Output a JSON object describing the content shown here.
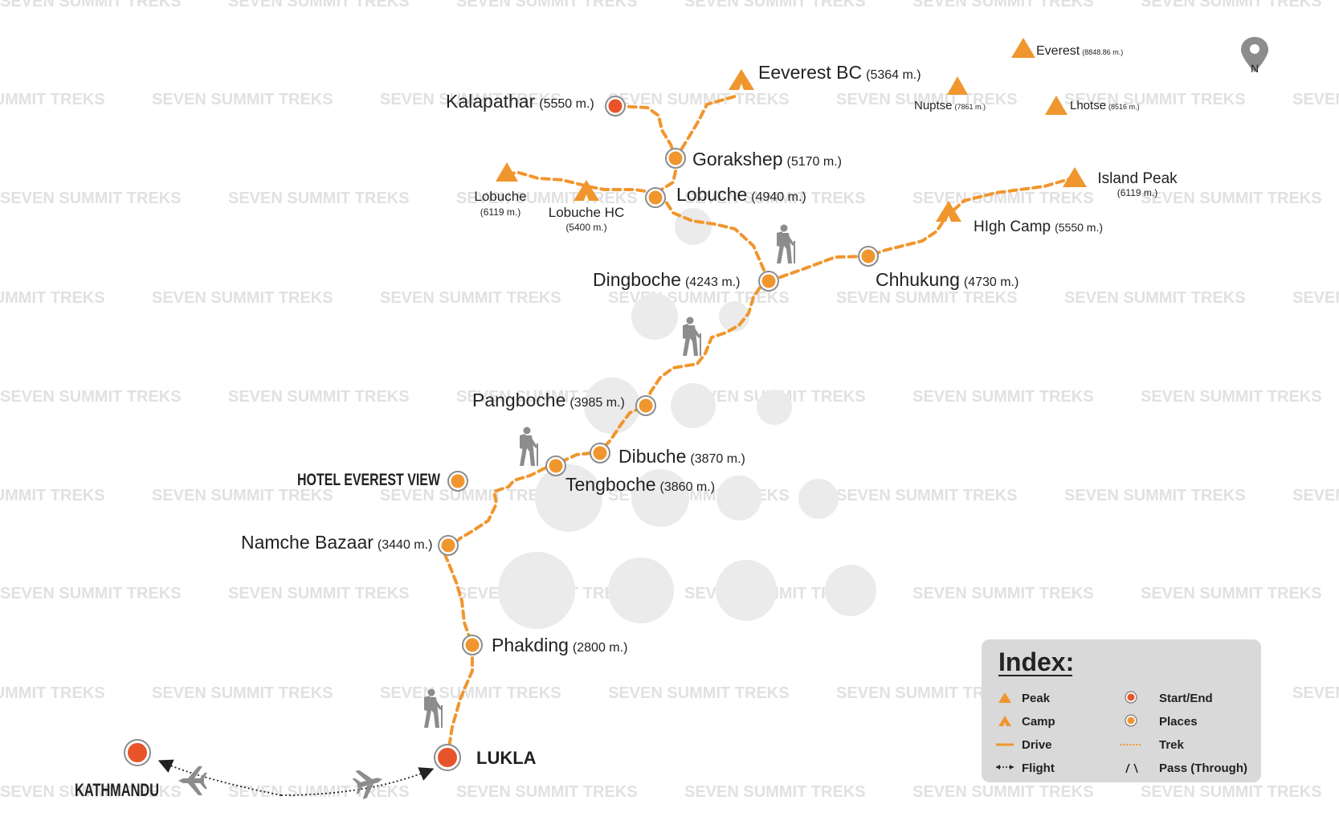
{
  "watermark": "SEVEN SUMMIT TREKS",
  "north_label": "N",
  "colors": {
    "orange": "#f0962e",
    "red": "#e8532a",
    "grey": "#8c8c8c",
    "hill": "#ebebeb",
    "legend_bg": "#d9d9d9"
  },
  "places": [
    {
      "id": "kalapathar",
      "name": "Kalapathar",
      "alt": "(5550 m.)",
      "type": "start-end"
    },
    {
      "id": "everest-bc",
      "name": "Eeverest BC",
      "alt": "(5364 m.)",
      "type": "camp"
    },
    {
      "id": "gorakshep",
      "name": "Gorakshep",
      "alt": "(5170 m.)",
      "type": "place"
    },
    {
      "id": "lobuche",
      "name": "Lobuche",
      "alt": "(4940 m.)",
      "type": "place"
    },
    {
      "id": "lobuche-hc",
      "name": "Lobuche HC",
      "alt": "(5400 m.)",
      "type": "camp"
    },
    {
      "id": "dingboche",
      "name": "Dingboche",
      "alt": "(4243 m.)",
      "type": "place"
    },
    {
      "id": "chhukung",
      "name": "Chhukung",
      "alt": "(4730 m.)",
      "type": "place"
    },
    {
      "id": "high-camp",
      "name": "HIgh Camp",
      "alt": "(5550 m.)",
      "type": "camp"
    },
    {
      "id": "pangboche",
      "name": "Pangboche",
      "alt": "(3985 m.)",
      "type": "place"
    },
    {
      "id": "dibuche",
      "name": "Dibuche",
      "alt": "(3870 m.)",
      "type": "place"
    },
    {
      "id": "tengboche",
      "name": "Tengboche",
      "alt": "(3860 m.)",
      "type": "place"
    },
    {
      "id": "hotel-everest-view",
      "name": "HOTEL EVEREST VIEW",
      "alt": "",
      "type": "place"
    },
    {
      "id": "namche-bazaar",
      "name": "Namche Bazaar",
      "alt": "(3440 m.)",
      "type": "place"
    },
    {
      "id": "phakding",
      "name": "Phakding",
      "alt": "(2800 m.)",
      "type": "place"
    },
    {
      "id": "lukla",
      "name": "LUKLA",
      "alt": "",
      "type": "start-end"
    },
    {
      "id": "kathmandu",
      "name": "KATHMANDU",
      "alt": "",
      "type": "start-end"
    }
  ],
  "peaks": [
    {
      "id": "everest",
      "name": "Everest",
      "alt": "(8848.86 m.)"
    },
    {
      "id": "nuptse",
      "name": "Nuptse",
      "alt": "(7861 m.)"
    },
    {
      "id": "lhotse",
      "name": "Lhotse",
      "alt": "(8516 m.)"
    },
    {
      "id": "island-peak",
      "name": "Island Peak",
      "alt": "(6119 m.)"
    },
    {
      "id": "lobuche-peak",
      "name": "Lobuche",
      "alt": "(6119 m.)"
    }
  ],
  "legend": {
    "title": "Index:",
    "items": [
      {
        "symbol": "peak",
        "label": "Peak"
      },
      {
        "symbol": "camp",
        "label": "Camp"
      },
      {
        "symbol": "drive",
        "label": "Drive"
      },
      {
        "symbol": "flight",
        "label": "Flight"
      },
      {
        "symbol": "start-end",
        "label": "Start/End"
      },
      {
        "symbol": "places",
        "label": "Places"
      },
      {
        "symbol": "trek",
        "label": "Trek"
      },
      {
        "symbol": "pass",
        "label": "Pass (Through)"
      }
    ]
  }
}
